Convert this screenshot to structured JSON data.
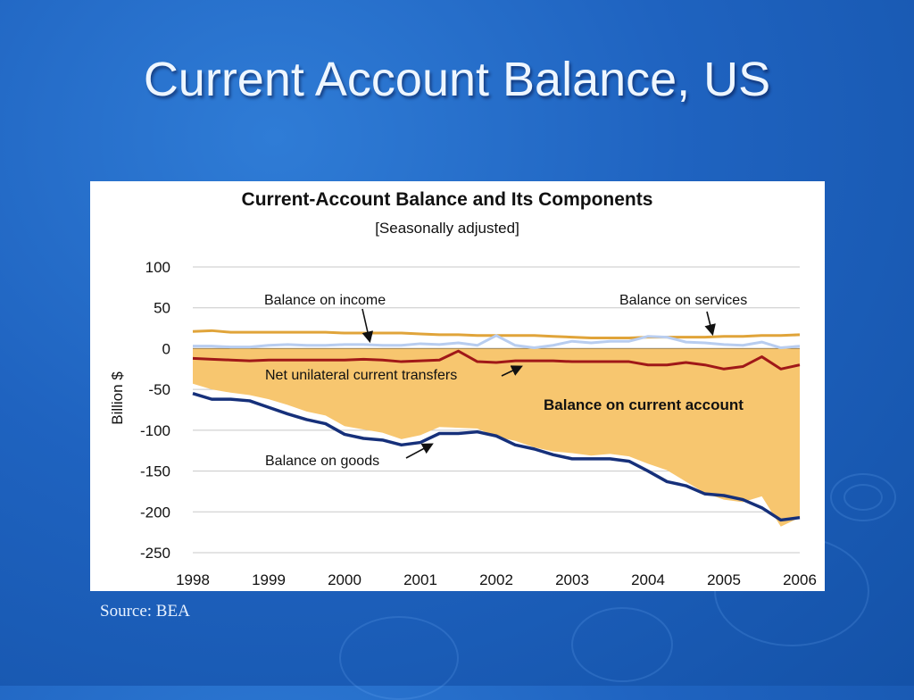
{
  "slide": {
    "title": "Current Account Balance, US",
    "source": "Source: BEA"
  },
  "colors": {
    "background": "#1f63c0",
    "services": "#e0a43a",
    "income": "#b8cdf0",
    "transfers": "#a01818",
    "goods": "#16307a",
    "current_account_fill": "#f7c66f"
  },
  "chart_data": {
    "type": "line",
    "title": "Current-Account Balance and Its Components",
    "subtitle": "[Seasonally adjusted]",
    "ylabel": "Billion $",
    "xlabel": "",
    "ylim": [
      -250,
      100
    ],
    "yticks": [
      100,
      50,
      0,
      -50,
      -100,
      -150,
      -200,
      -250
    ],
    "xlim": [
      1998,
      2006
    ],
    "xticks": [
      "1998",
      "1999",
      "2000",
      "2001",
      "2002",
      "2003",
      "2004",
      "2005",
      "2006"
    ],
    "grid": true,
    "x": [
      1998.0,
      1998.25,
      1998.5,
      1998.75,
      1999.0,
      1999.25,
      1999.5,
      1999.75,
      2000.0,
      2000.25,
      2000.5,
      2000.75,
      2001.0,
      2001.25,
      2001.5,
      2001.75,
      2002.0,
      2002.25,
      2002.5,
      2002.75,
      2003.0,
      2003.25,
      2003.5,
      2003.75,
      2004.0,
      2004.25,
      2004.5,
      2004.75,
      2005.0,
      2005.25,
      2005.5,
      2005.75,
      2006.0
    ],
    "series": [
      {
        "name": "Balance on services",
        "color_key": "services",
        "values": [
          21,
          22,
          20,
          20,
          20,
          20,
          20,
          20,
          19,
          19,
          19,
          19,
          18,
          17,
          17,
          16,
          16,
          16,
          16,
          15,
          14,
          13,
          13,
          13,
          14,
          14,
          14,
          14,
          15,
          15,
          16,
          16,
          17
        ]
      },
      {
        "name": "Balance on income",
        "color_key": "income",
        "values": [
          3,
          3,
          2,
          2,
          4,
          5,
          4,
          4,
          5,
          5,
          4,
          4,
          6,
          5,
          7,
          4,
          16,
          4,
          1,
          4,
          9,
          7,
          9,
          9,
          15,
          14,
          8,
          7,
          5,
          4,
          8,
          1,
          3
        ]
      },
      {
        "name": "Net unilateral current transfers",
        "color_key": "transfers",
        "values": [
          -12,
          -13,
          -14,
          -15,
          -14,
          -14,
          -14,
          -14,
          -14,
          -13,
          -14,
          -16,
          -15,
          -14,
          -3,
          -16,
          -17,
          -15,
          -15,
          -15,
          -16,
          -16,
          -16,
          -16,
          -20,
          -20,
          -17,
          -20,
          -25,
          -22,
          -10,
          -25,
          -20
        ]
      },
      {
        "name": "Balance on goods",
        "color_key": "goods",
        "values": [
          -55,
          -62,
          -62,
          -64,
          -72,
          -80,
          -87,
          -92,
          -105,
          -110,
          -112,
          -118,
          -115,
          -104,
          -104,
          -102,
          -107,
          -118,
          -123,
          -130,
          -135,
          -135,
          -135,
          -138,
          -150,
          -163,
          -168,
          -178,
          -180,
          -185,
          -195,
          -210,
          -207
        ]
      }
    ],
    "area": {
      "name": "Balance on current account",
      "color_key": "current_account_fill",
      "values": [
        -43,
        -50,
        -54,
        -57,
        -62,
        -69,
        -77,
        -82,
        -95,
        -99,
        -103,
        -111,
        -106,
        -96,
        -97,
        -98,
        -108,
        -113,
        -121,
        -126,
        -128,
        -131,
        -129,
        -132,
        -141,
        -149,
        -163,
        -177,
        -185,
        -188,
        -181,
        -218,
        -207
      ]
    },
    "annotations": [
      {
        "text": "Balance on income",
        "target": "Balance on income"
      },
      {
        "text": "Balance on services",
        "target": "Balance on services"
      },
      {
        "text": "Net unilateral current transfers",
        "target": "Net unilateral current transfers"
      },
      {
        "text": "Balance on current account",
        "target": "Balance on current account"
      },
      {
        "text": "Balance on goods",
        "target": "Balance on goods"
      }
    ]
  }
}
